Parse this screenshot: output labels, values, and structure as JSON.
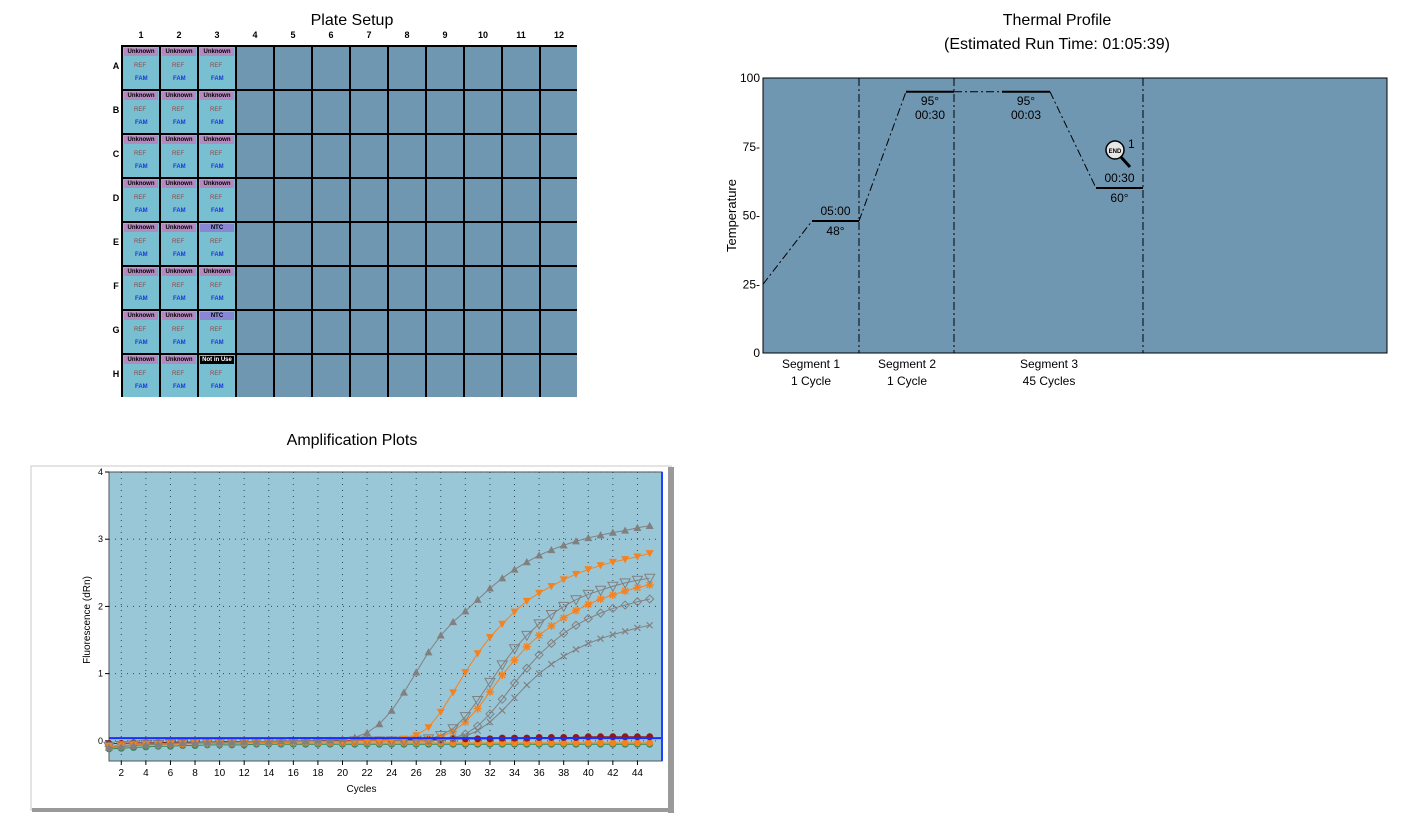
{
  "plate_setup": {
    "title": "Plate Setup",
    "columns": [
      "1",
      "2",
      "3",
      "4",
      "5",
      "6",
      "7",
      "8",
      "9",
      "10",
      "11",
      "12"
    ],
    "rows": [
      "A",
      "B",
      "C",
      "D",
      "E",
      "F",
      "G",
      "H"
    ],
    "reference_dye_label": "REF",
    "reporter_dye_label": "FAM",
    "wells": [
      {
        "row": "A",
        "col": 1,
        "type": "Unknown"
      },
      {
        "row": "A",
        "col": 2,
        "type": "Unknown"
      },
      {
        "row": "A",
        "col": 3,
        "type": "Unknown"
      },
      {
        "row": "B",
        "col": 1,
        "type": "Unknown"
      },
      {
        "row": "B",
        "col": 2,
        "type": "Unknown"
      },
      {
        "row": "B",
        "col": 3,
        "type": "Unknown"
      },
      {
        "row": "C",
        "col": 1,
        "type": "Unknown"
      },
      {
        "row": "C",
        "col": 2,
        "type": "Unknown"
      },
      {
        "row": "C",
        "col": 3,
        "type": "Unknown"
      },
      {
        "row": "D",
        "col": 1,
        "type": "Unknown"
      },
      {
        "row": "D",
        "col": 2,
        "type": "Unknown"
      },
      {
        "row": "D",
        "col": 3,
        "type": "Unknown"
      },
      {
        "row": "E",
        "col": 1,
        "type": "Unknown"
      },
      {
        "row": "E",
        "col": 2,
        "type": "Unknown"
      },
      {
        "row": "E",
        "col": 3,
        "type": "NTC"
      },
      {
        "row": "F",
        "col": 1,
        "type": "Unknown"
      },
      {
        "row": "F",
        "col": 2,
        "type": "Unknown"
      },
      {
        "row": "F",
        "col": 3,
        "type": "Unknown"
      },
      {
        "row": "G",
        "col": 1,
        "type": "Unknown"
      },
      {
        "row": "G",
        "col": 2,
        "type": "Unknown"
      },
      {
        "row": "G",
        "col": 3,
        "type": "NTC"
      },
      {
        "row": "H",
        "col": 1,
        "type": "Unknown"
      },
      {
        "row": "H",
        "col": 2,
        "type": "Unknown"
      },
      {
        "row": "H",
        "col": 3,
        "type": "Not in Use"
      }
    ]
  },
  "thermal_profile": {
    "title": "Thermal Profile",
    "subtitle": "(Estimated Run Time: 01:05:39)",
    "ylabel": "Temperature",
    "yticks": [
      "0",
      "25-",
      "50-",
      "75-",
      "100"
    ],
    "steps": [
      {
        "temp": "48°",
        "time": "05:00",
        "temp_value": 48
      },
      {
        "temp": "95°",
        "time": "00:30",
        "temp_value": 95
      },
      {
        "temp": "95°",
        "time": "00:03",
        "temp_value": 95
      },
      {
        "temp": "60°",
        "time": "00:30",
        "temp_value": 60
      }
    ],
    "segments": [
      {
        "name": "Segment 1",
        "cycles": "1 Cycle"
      },
      {
        "name": "Segment 2",
        "cycles": "1 Cycle"
      },
      {
        "name": "Segment 3",
        "cycles": "45 Cycles"
      }
    ],
    "end_icon_label": "END",
    "end_marker_number": "1",
    "colors": {
      "background": "#7097b2"
    }
  },
  "chart_data": {
    "type": "line",
    "title": "Amplification Plots",
    "xlabel": "Cycles",
    "ylabel": "Fluorescence (dRn)",
    "xlim": [
      1,
      46
    ],
    "ylim": [
      -0.3,
      4
    ],
    "xticks": [
      2,
      4,
      6,
      8,
      10,
      12,
      14,
      16,
      18,
      20,
      22,
      24,
      26,
      28,
      30,
      32,
      34,
      36,
      38,
      40,
      42,
      44
    ],
    "yticks": [
      0,
      1,
      2,
      3,
      4
    ],
    "grid": true,
    "threshold": 0.04,
    "x": [
      1,
      2,
      3,
      4,
      5,
      6,
      7,
      8,
      9,
      10,
      11,
      12,
      13,
      14,
      15,
      16,
      17,
      18,
      19,
      20,
      21,
      22,
      23,
      24,
      25,
      26,
      27,
      28,
      29,
      30,
      31,
      32,
      33,
      34,
      35,
      36,
      37,
      38,
      39,
      40,
      41,
      42,
      43,
      44,
      45
    ],
    "series": [
      {
        "color": "#808080",
        "marker": "triangle-up",
        "values": [
          -0.1,
          -0.09,
          -0.07,
          -0.06,
          -0.05,
          -0.04,
          -0.03,
          -0.03,
          -0.02,
          -0.02,
          -0.02,
          -0.01,
          -0.01,
          -0.01,
          0,
          0,
          0,
          0.01,
          0.01,
          0.03,
          0.05,
          0.12,
          0.25,
          0.45,
          0.72,
          1.02,
          1.32,
          1.57,
          1.77,
          1.93,
          2.1,
          2.27,
          2.42,
          2.55,
          2.66,
          2.76,
          2.84,
          2.91,
          2.97,
          3.02,
          3.06,
          3.1,
          3.13,
          3.17,
          3.2
        ]
      },
      {
        "color": "#f5821f",
        "marker": "triangle-down",
        "values": [
          -0.08,
          -0.07,
          -0.06,
          -0.05,
          -0.05,
          -0.04,
          -0.04,
          -0.03,
          -0.03,
          -0.03,
          -0.02,
          -0.02,
          -0.02,
          -0.02,
          -0.02,
          -0.01,
          -0.01,
          -0.01,
          -0.01,
          -0.01,
          0,
          0,
          0,
          0.01,
          0.03,
          0.08,
          0.2,
          0.43,
          0.72,
          1.02,
          1.3,
          1.54,
          1.74,
          1.92,
          2.08,
          2.2,
          2.3,
          2.4,
          2.48,
          2.55,
          2.61,
          2.66,
          2.7,
          2.74,
          2.79
        ]
      },
      {
        "color": "#808080",
        "marker": "triangle-down-open",
        "values": [
          -0.08,
          -0.07,
          -0.06,
          -0.05,
          -0.05,
          -0.04,
          -0.04,
          -0.03,
          -0.03,
          -0.03,
          -0.02,
          -0.02,
          -0.02,
          -0.02,
          -0.02,
          -0.01,
          -0.01,
          -0.01,
          -0.01,
          -0.01,
          0,
          0,
          0,
          0,
          0,
          0.01,
          0.03,
          0.08,
          0.18,
          0.36,
          0.6,
          0.87,
          1.13,
          1.37,
          1.57,
          1.74,
          1.88,
          2.0,
          2.1,
          2.18,
          2.24,
          2.3,
          2.35,
          2.39,
          2.42
        ]
      },
      {
        "color": "#f5821f",
        "marker": "star",
        "values": [
          -0.08,
          -0.07,
          -0.06,
          -0.05,
          -0.05,
          -0.04,
          -0.04,
          -0.03,
          -0.03,
          -0.03,
          -0.02,
          -0.02,
          -0.02,
          -0.02,
          -0.02,
          -0.01,
          -0.01,
          -0.01,
          -0.01,
          -0.01,
          0,
          0,
          0,
          0,
          0,
          0,
          0.02,
          0.06,
          0.14,
          0.28,
          0.48,
          0.73,
          0.98,
          1.2,
          1.4,
          1.57,
          1.71,
          1.83,
          1.94,
          2.03,
          2.11,
          2.17,
          2.23,
          2.28,
          2.32
        ]
      },
      {
        "color": "#808080",
        "marker": "diamond-open",
        "values": [
          -0.08,
          -0.07,
          -0.06,
          -0.05,
          -0.05,
          -0.04,
          -0.04,
          -0.03,
          -0.03,
          -0.03,
          -0.02,
          -0.02,
          -0.02,
          -0.02,
          -0.02,
          -0.01,
          -0.01,
          -0.01,
          -0.01,
          -0.01,
          0,
          0,
          0,
          0,
          0,
          0,
          0,
          0.01,
          0.04,
          0.1,
          0.22,
          0.4,
          0.62,
          0.86,
          1.08,
          1.28,
          1.45,
          1.6,
          1.72,
          1.82,
          1.9,
          1.97,
          2.02,
          2.07,
          2.11
        ]
      },
      {
        "color": "#808080",
        "marker": "x",
        "values": [
          -0.08,
          -0.07,
          -0.06,
          -0.05,
          -0.05,
          -0.04,
          -0.04,
          -0.03,
          -0.03,
          -0.03,
          -0.02,
          -0.02,
          -0.02,
          -0.02,
          -0.02,
          -0.01,
          -0.01,
          -0.01,
          -0.01,
          -0.01,
          0,
          0,
          0,
          0,
          0,
          0,
          0,
          0.01,
          0.03,
          0.07,
          0.15,
          0.28,
          0.45,
          0.64,
          0.83,
          1.0,
          1.14,
          1.26,
          1.36,
          1.45,
          1.52,
          1.58,
          1.63,
          1.68,
          1.72
        ]
      },
      {
        "color": "#8b1a1a",
        "marker": "circle",
        "values": [
          -0.04,
          -0.04,
          -0.03,
          -0.03,
          -0.03,
          -0.02,
          -0.02,
          -0.02,
          -0.02,
          -0.01,
          -0.01,
          -0.01,
          -0.01,
          -0.01,
          0,
          0,
          0,
          0,
          0,
          0,
          0.01,
          0.01,
          0.01,
          0.01,
          0.02,
          0.02,
          0.02,
          0.02,
          0.03,
          0.03,
          0.03,
          0.03,
          0.04,
          0.04,
          0.04,
          0.05,
          0.05,
          0.05,
          0.05,
          0.06,
          0.06,
          0.06,
          0.06,
          0.06,
          0.06
        ]
      },
      {
        "color": "#2e8b57",
        "marker": "circle",
        "values": [
          -0.12,
          -0.11,
          -0.1,
          -0.09,
          -0.08,
          -0.08,
          -0.07,
          -0.07,
          -0.06,
          -0.06,
          -0.06,
          -0.06,
          -0.05,
          -0.05,
          -0.05,
          -0.05,
          -0.05,
          -0.05,
          -0.05,
          -0.05,
          -0.05,
          -0.05,
          -0.05,
          -0.05,
          -0.05,
          -0.05,
          -0.05,
          -0.05,
          -0.05,
          -0.05,
          -0.05,
          -0.05,
          -0.05,
          -0.05,
          -0.05,
          -0.05,
          -0.05,
          -0.05,
          -0.05,
          -0.05,
          -0.05,
          -0.05,
          -0.05,
          -0.05,
          -0.05
        ]
      },
      {
        "color": "#f5821f",
        "marker": "circle",
        "values": [
          -0.09,
          -0.08,
          -0.07,
          -0.06,
          -0.06,
          -0.05,
          -0.05,
          -0.04,
          -0.04,
          -0.04,
          -0.04,
          -0.04,
          -0.03,
          -0.03,
          -0.03,
          -0.03,
          -0.03,
          -0.03,
          -0.03,
          -0.03,
          -0.03,
          -0.03,
          -0.03,
          -0.03,
          -0.03,
          -0.03,
          -0.03,
          -0.03,
          -0.03,
          -0.03,
          -0.03,
          -0.03,
          -0.03,
          -0.03,
          -0.03,
          -0.03,
          -0.03,
          -0.03,
          -0.03,
          -0.03,
          -0.03,
          -0.03,
          -0.03,
          -0.03,
          -0.03
        ]
      }
    ]
  }
}
